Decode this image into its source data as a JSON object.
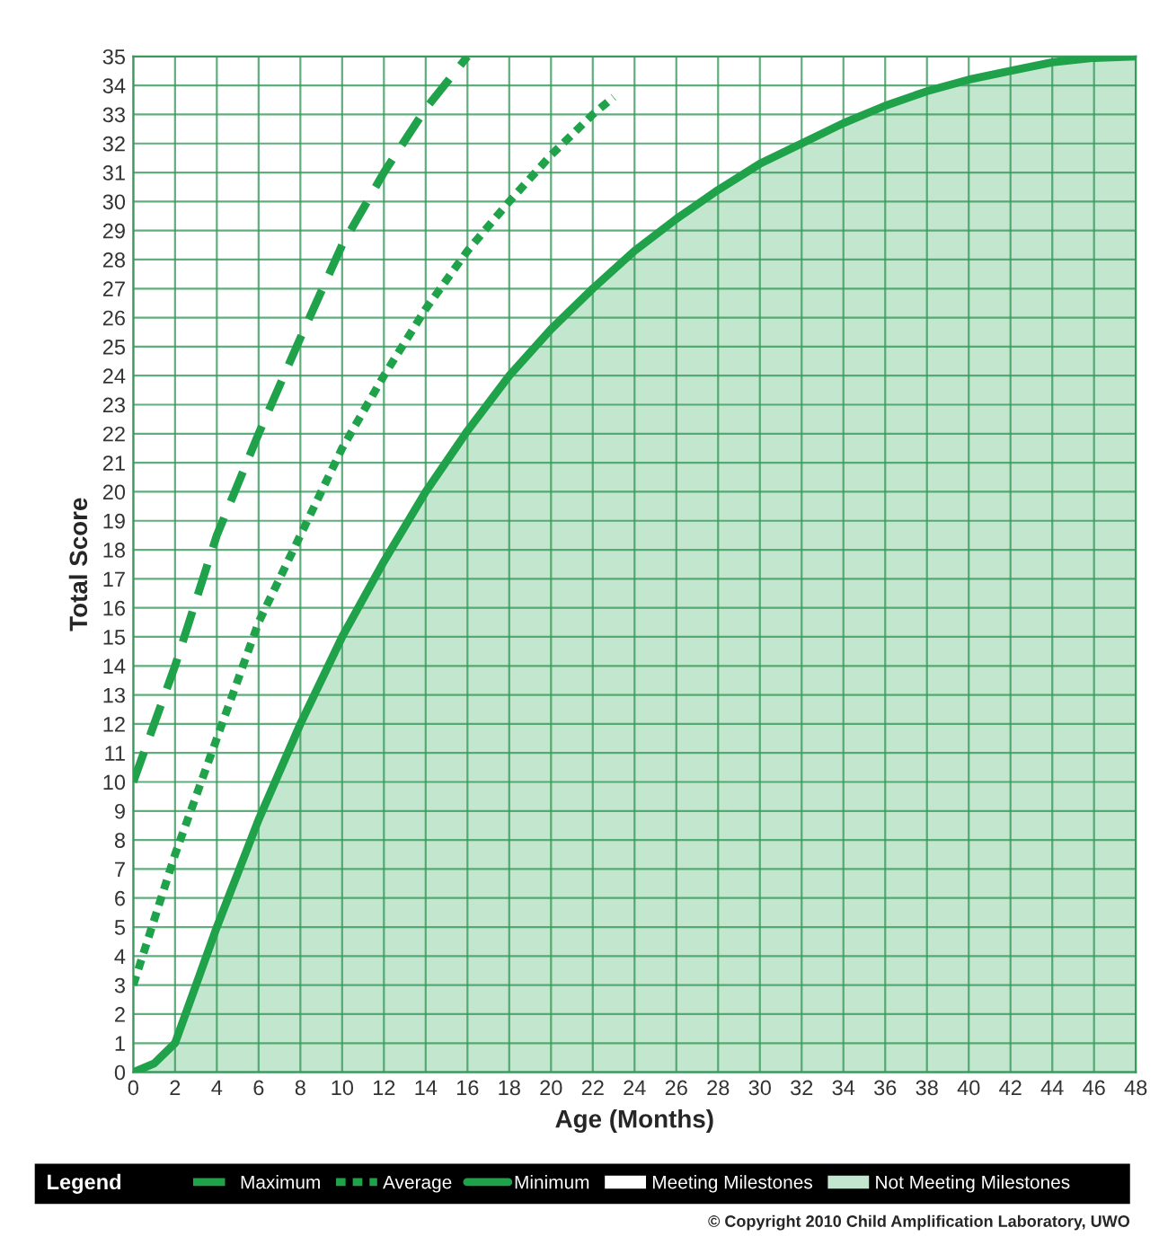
{
  "chart_data": {
    "type": "line",
    "xlabel": "Age (Months)",
    "ylabel": "Total Score",
    "legend_title": "Legend",
    "legend": "bottom",
    "grid": true,
    "xlim": [
      0,
      48
    ],
    "xticks": [
      0,
      2,
      4,
      6,
      8,
      10,
      12,
      14,
      16,
      18,
      20,
      22,
      24,
      26,
      28,
      30,
      32,
      34,
      36,
      38,
      40,
      42,
      44,
      46,
      48
    ],
    "ylim": [
      0,
      35
    ],
    "yticks": [
      0,
      1,
      2,
      3,
      4,
      5,
      6,
      7,
      8,
      9,
      10,
      11,
      12,
      13,
      14,
      15,
      16,
      17,
      18,
      19,
      20,
      21,
      22,
      23,
      24,
      25,
      26,
      27,
      28,
      29,
      30,
      31,
      32,
      33,
      34,
      35
    ],
    "series": [
      {
        "name": "Maximum",
        "line_style": "dashed",
        "color": "#1fa24a",
        "x": [
          0,
          2,
          4,
          6,
          8,
          10,
          12,
          14,
          16
        ],
        "values": [
          10,
          14,
          18.5,
          22,
          25.3,
          28.5,
          31,
          33.2,
          35
        ]
      },
      {
        "name": "Average",
        "line_style": "dotted",
        "color": "#1fa24a",
        "x": [
          0,
          2,
          4,
          6,
          8,
          10,
          12,
          14,
          16,
          18,
          20,
          22,
          23
        ],
        "values": [
          3,
          7.5,
          11.5,
          15.5,
          18.5,
          21.5,
          24,
          26.3,
          28.3,
          30,
          31.6,
          33,
          33.6
        ]
      },
      {
        "name": "Minimum",
        "type": "area",
        "line_style": "solid",
        "color": "#1fa24a",
        "x": [
          0,
          1,
          2,
          3,
          4,
          6,
          8,
          10,
          12,
          14,
          16,
          18,
          20,
          22,
          24,
          26,
          28,
          30,
          32,
          34,
          36,
          38,
          40,
          42,
          44,
          46,
          48
        ],
        "values": [
          0,
          0.3,
          1,
          3,
          5,
          8.7,
          12,
          15,
          17.6,
          20,
          22.1,
          24,
          25.6,
          27,
          28.3,
          29.4,
          30.4,
          31.3,
          32,
          32.7,
          33.3,
          33.8,
          34.2,
          34.5,
          34.8,
          34.95,
          35
        ]
      }
    ],
    "annotations": [
      "Meeting Milestones",
      "Not Meeting Milestones",
      "© Copyright 2010 Child Amplification Laboratory, UWO"
    ]
  }
}
